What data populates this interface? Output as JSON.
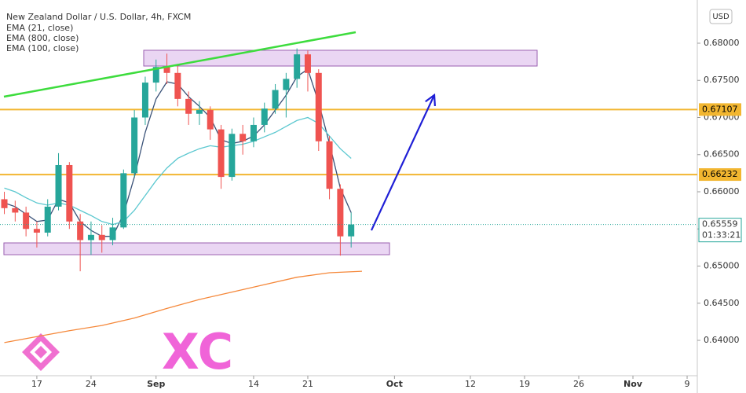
{
  "chart_data": {
    "type": "candlestick",
    "title": "New Zealand Dollar / U.S. Dollar, 4h, FXCM",
    "currency": "USD",
    "watermark": "XC",
    "up_color": "#26a69a",
    "down_color": "#ef5350",
    "candles": {
      "x": [
        -3,
        -2,
        -1,
        0,
        1,
        2,
        3,
        4,
        5,
        6,
        7,
        8,
        9,
        10,
        11,
        12,
        13,
        14,
        15,
        16,
        17,
        18,
        19,
        20,
        21,
        22,
        23,
        24,
        25,
        26,
        27,
        28,
        29
      ],
      "open": [
        0.659,
        0.6578,
        0.6572,
        0.655,
        0.6545,
        0.658,
        0.6636,
        0.656,
        0.6535,
        0.6542,
        0.6535,
        0.6552,
        0.6625,
        0.67,
        0.6747,
        0.6768,
        0.676,
        0.6725,
        0.6705,
        0.671,
        0.6684,
        0.662,
        0.6678,
        0.6668,
        0.669,
        0.6712,
        0.6737,
        0.6752,
        0.6785,
        0.676,
        0.6668,
        0.6604,
        0.654
      ],
      "high": [
        0.66,
        0.6588,
        0.658,
        0.656,
        0.659,
        0.6652,
        0.664,
        0.657,
        0.656,
        0.6555,
        0.6565,
        0.663,
        0.671,
        0.6755,
        0.6778,
        0.6786,
        0.6772,
        0.6735,
        0.6722,
        0.6715,
        0.669,
        0.6685,
        0.669,
        0.67,
        0.672,
        0.6745,
        0.676,
        0.6793,
        0.679,
        0.6765,
        0.6675,
        0.661,
        0.6572
      ],
      "low": [
        0.657,
        0.656,
        0.654,
        0.6525,
        0.654,
        0.6575,
        0.655,
        0.6493,
        0.6515,
        0.6518,
        0.6528,
        0.655,
        0.662,
        0.669,
        0.6735,
        0.6745,
        0.6715,
        0.669,
        0.669,
        0.667,
        0.6604,
        0.6615,
        0.665,
        0.666,
        0.668,
        0.6705,
        0.67,
        0.674,
        0.6735,
        0.6655,
        0.659,
        0.6514,
        0.6525
      ],
      "close": [
        0.6578,
        0.6572,
        0.655,
        0.6545,
        0.658,
        0.6636,
        0.656,
        0.6535,
        0.6542,
        0.6535,
        0.6552,
        0.6625,
        0.67,
        0.6747,
        0.6768,
        0.676,
        0.6725,
        0.6705,
        0.671,
        0.6684,
        0.662,
        0.6678,
        0.6668,
        0.669,
        0.6712,
        0.6737,
        0.6752,
        0.6785,
        0.676,
        0.6668,
        0.6604,
        0.654,
        0.6556
      ]
    },
    "series": [
      {
        "name": "EMA (21, close)",
        "color": "#3a5278",
        "x": [
          -3,
          -2,
          -1,
          0,
          1,
          2,
          3,
          4,
          5,
          6,
          7,
          8,
          9,
          10,
          11,
          12,
          13,
          14,
          15,
          16,
          17,
          18,
          19,
          20,
          21,
          22,
          23,
          24,
          25,
          26,
          27,
          28,
          29
        ],
        "values": [
          0.6585,
          0.658,
          0.657,
          0.656,
          0.6562,
          0.659,
          0.6585,
          0.656,
          0.6548,
          0.654,
          0.654,
          0.657,
          0.662,
          0.668,
          0.6725,
          0.6748,
          0.6745,
          0.6728,
          0.6715,
          0.67,
          0.667,
          0.6665,
          0.6668,
          0.6675,
          0.669,
          0.671,
          0.673,
          0.6755,
          0.6765,
          0.672,
          0.6665,
          0.6605,
          0.6572
        ]
      },
      {
        "name": "EMA (800, close)",
        "color": "#f5883a",
        "x": [
          -3,
          0,
          3,
          6,
          9,
          12,
          15,
          18,
          21,
          24,
          27,
          30
        ],
        "values": [
          0.6397,
          0.6405,
          0.6413,
          0.642,
          0.643,
          0.6443,
          0.6455,
          0.6465,
          0.6475,
          0.6485,
          0.6491,
          0.6493
        ]
      },
      {
        "name": "EMA (100, close)",
        "color": "#5cc8d0",
        "x": [
          -3,
          -2,
          -1,
          0,
          1,
          2,
          3,
          4,
          5,
          6,
          7,
          8,
          9,
          10,
          11,
          12,
          13,
          14,
          15,
          16,
          17,
          18,
          19,
          20,
          21,
          22,
          23,
          24,
          25,
          26,
          27,
          28,
          29
        ],
        "values": [
          0.6605,
          0.66,
          0.6592,
          0.6585,
          0.6582,
          0.6585,
          0.6582,
          0.6575,
          0.6568,
          0.656,
          0.6556,
          0.656,
          0.6575,
          0.6595,
          0.6615,
          0.6632,
          0.6645,
          0.6652,
          0.6658,
          0.6662,
          0.666,
          0.6662,
          0.6664,
          0.6668,
          0.6674,
          0.668,
          0.6688,
          0.6696,
          0.67,
          0.6692,
          0.6675,
          0.6658,
          0.6645
        ]
      }
    ],
    "xlim": [
      -3.4,
      60.94
    ],
    "xticks": [
      {
        "value": 0,
        "label": "17"
      },
      {
        "value": 5,
        "label": "24"
      },
      {
        "value": 11,
        "label": "Sep"
      },
      {
        "value": 20,
        "label": "14"
      },
      {
        "value": 25,
        "label": "21"
      },
      {
        "value": 33,
        "label": "Oct"
      },
      {
        "value": 40,
        "label": "12"
      },
      {
        "value": 45,
        "label": "19"
      },
      {
        "value": 50,
        "label": "26"
      },
      {
        "value": 55,
        "label": "Nov"
      },
      {
        "value": 60,
        "label": "9"
      }
    ],
    "ylim": [
      0.63524,
      0.68476
    ],
    "yticks": [
      {
        "value": 0.64,
        "label": "0.64000"
      },
      {
        "value": 0.645,
        "label": "0.64500"
      },
      {
        "value": 0.65,
        "label": "0.65000"
      },
      {
        "value": 0.655,
        "label": "0.65500"
      },
      {
        "value": 0.66,
        "label": "0.66000"
      },
      {
        "value": 0.665,
        "label": "0.66500"
      },
      {
        "value": 0.67,
        "label": "0.67000"
      },
      {
        "value": 0.675,
        "label": "0.67500"
      },
      {
        "value": 0.68,
        "label": "0.68000"
      }
    ],
    "grid": false,
    "annotations": {
      "trendline": {
        "x": [
          -3.04,
          29.42
        ],
        "y": [
          0.6728,
          0.68148
        ],
        "color": "#3ddc3d"
      },
      "levels": [
        {
          "value": 0.67107,
          "color": "#f2b630"
        },
        {
          "value": 0.66232,
          "color": "#f2b630"
        }
      ],
      "zones": [
        {
          "x": [
            9.86,
            46.16
          ],
          "y": [
            0.67693,
            0.67905
          ],
          "color": "#e3c8ef"
        },
        {
          "x": [
            -3.04,
            32.54
          ],
          "y": [
            0.65153,
            0.65312
          ],
          "color": "#e3c8ef"
        }
      ],
      "arrow": {
        "x": [
          30.87,
          36.67
        ],
        "y": [
          0.65481,
          0.67302
        ],
        "color": "#1f1fd6"
      },
      "last_price": 0.65559,
      "countdown": "01:33:21"
    }
  }
}
